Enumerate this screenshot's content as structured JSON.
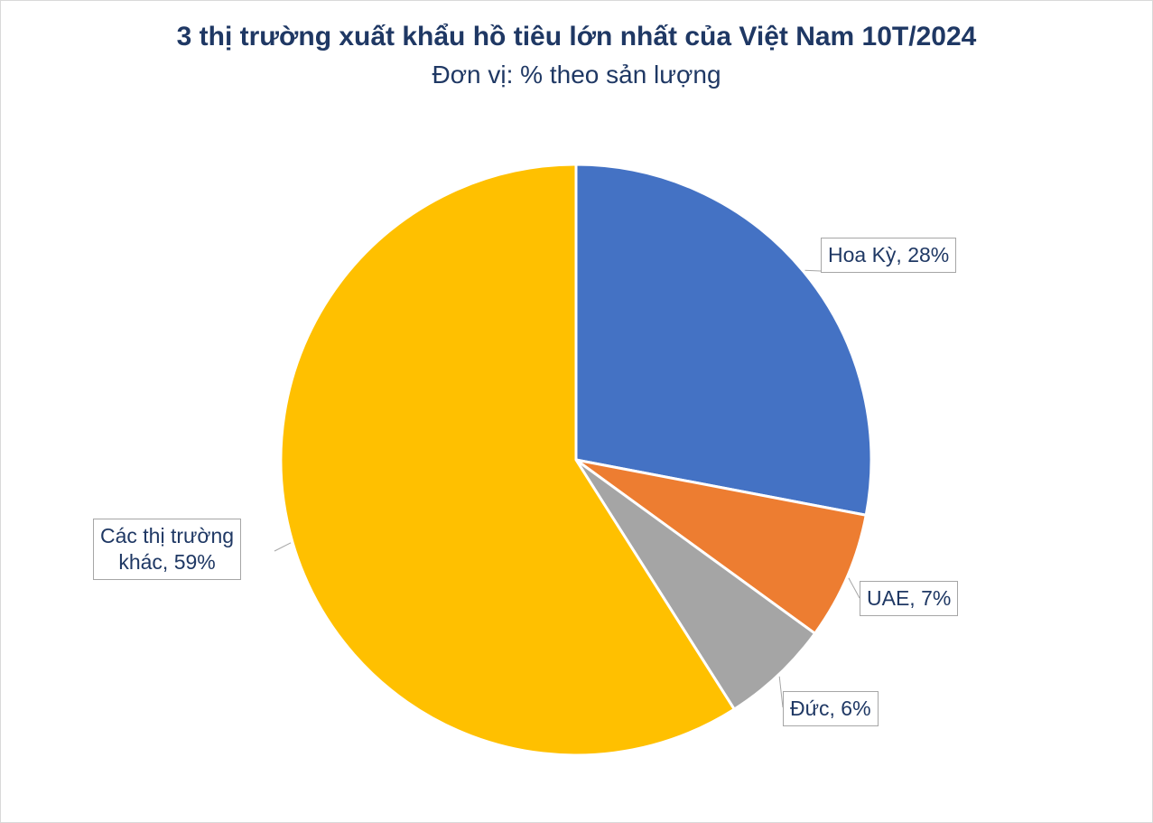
{
  "chart_data": {
    "type": "pie",
    "title": "3 thị trường xuất khẩu hồ tiêu lớn nhất của Việt Nam 10T/2024",
    "subtitle": "Đơn vị: % theo sản lượng",
    "categories": [
      "Hoa Kỳ",
      "UAE",
      "Đức",
      "Các thị trường khác"
    ],
    "values": [
      28,
      7,
      6,
      59
    ],
    "data_labels": [
      "Hoa Kỳ, 28%",
      "UAE, 7%",
      "Đức, 6%",
      "Các thị trường khác, 59%"
    ],
    "data_labels_lines": [
      [
        "Hoa Kỳ, 28%"
      ],
      [
        "UAE, 7%"
      ],
      [
        "Đức, 6%"
      ],
      [
        "Các thị trường",
        "khác, 59%"
      ]
    ],
    "colors": [
      "#4472c4",
      "#ed7d31",
      "#a5a5a5",
      "#ffc000"
    ],
    "unit": "%",
    "start": "12 o'clock, clockwise"
  }
}
